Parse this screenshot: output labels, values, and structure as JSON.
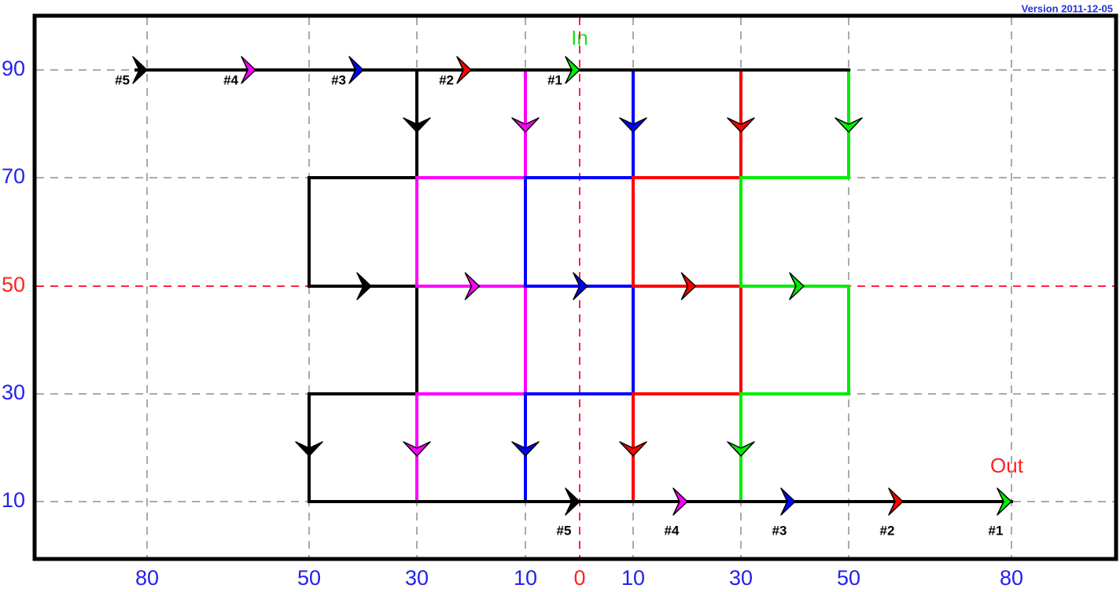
{
  "version": "Version 2011-12-05",
  "in_label": "In",
  "out_label": "Out",
  "y_axis_labels": [
    90,
    70,
    50,
    30,
    10
  ],
  "x_axis_labels": [
    80,
    50,
    30,
    10,
    0,
    10,
    30,
    50,
    80
  ],
  "input_ports": [
    "#5",
    "#4",
    "#3",
    "#2",
    "#1"
  ],
  "output_ports": [
    "#5",
    "#4",
    "#3",
    "#2",
    "#1"
  ]
}
